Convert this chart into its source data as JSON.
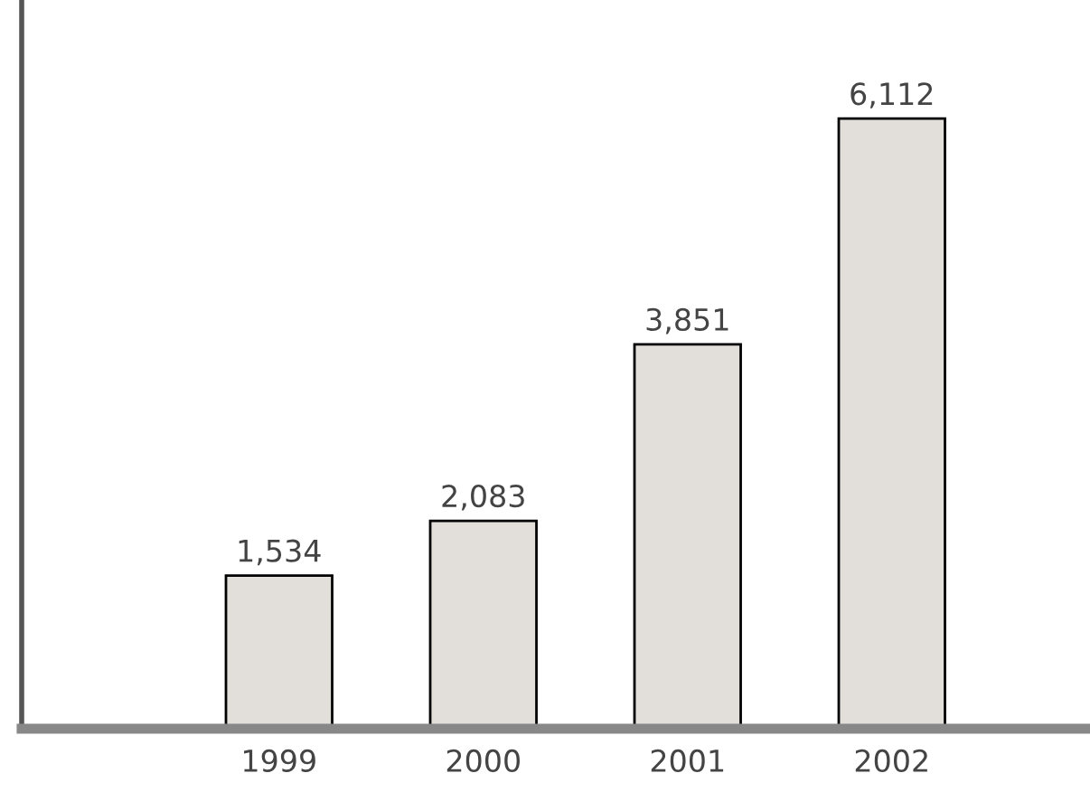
{
  "chart_data": {
    "type": "bar",
    "categories": [
      "1999",
      "2000",
      "2001",
      "2002"
    ],
    "values": [
      1534,
      2083,
      3851,
      6112
    ],
    "value_labels": [
      "1,534",
      "2,083",
      "3,851",
      "6,112"
    ],
    "color": "#e2dfda",
    "ylim": [
      0,
      7300
    ],
    "tick_labels": "x",
    "grid": false,
    "legend": false
  }
}
